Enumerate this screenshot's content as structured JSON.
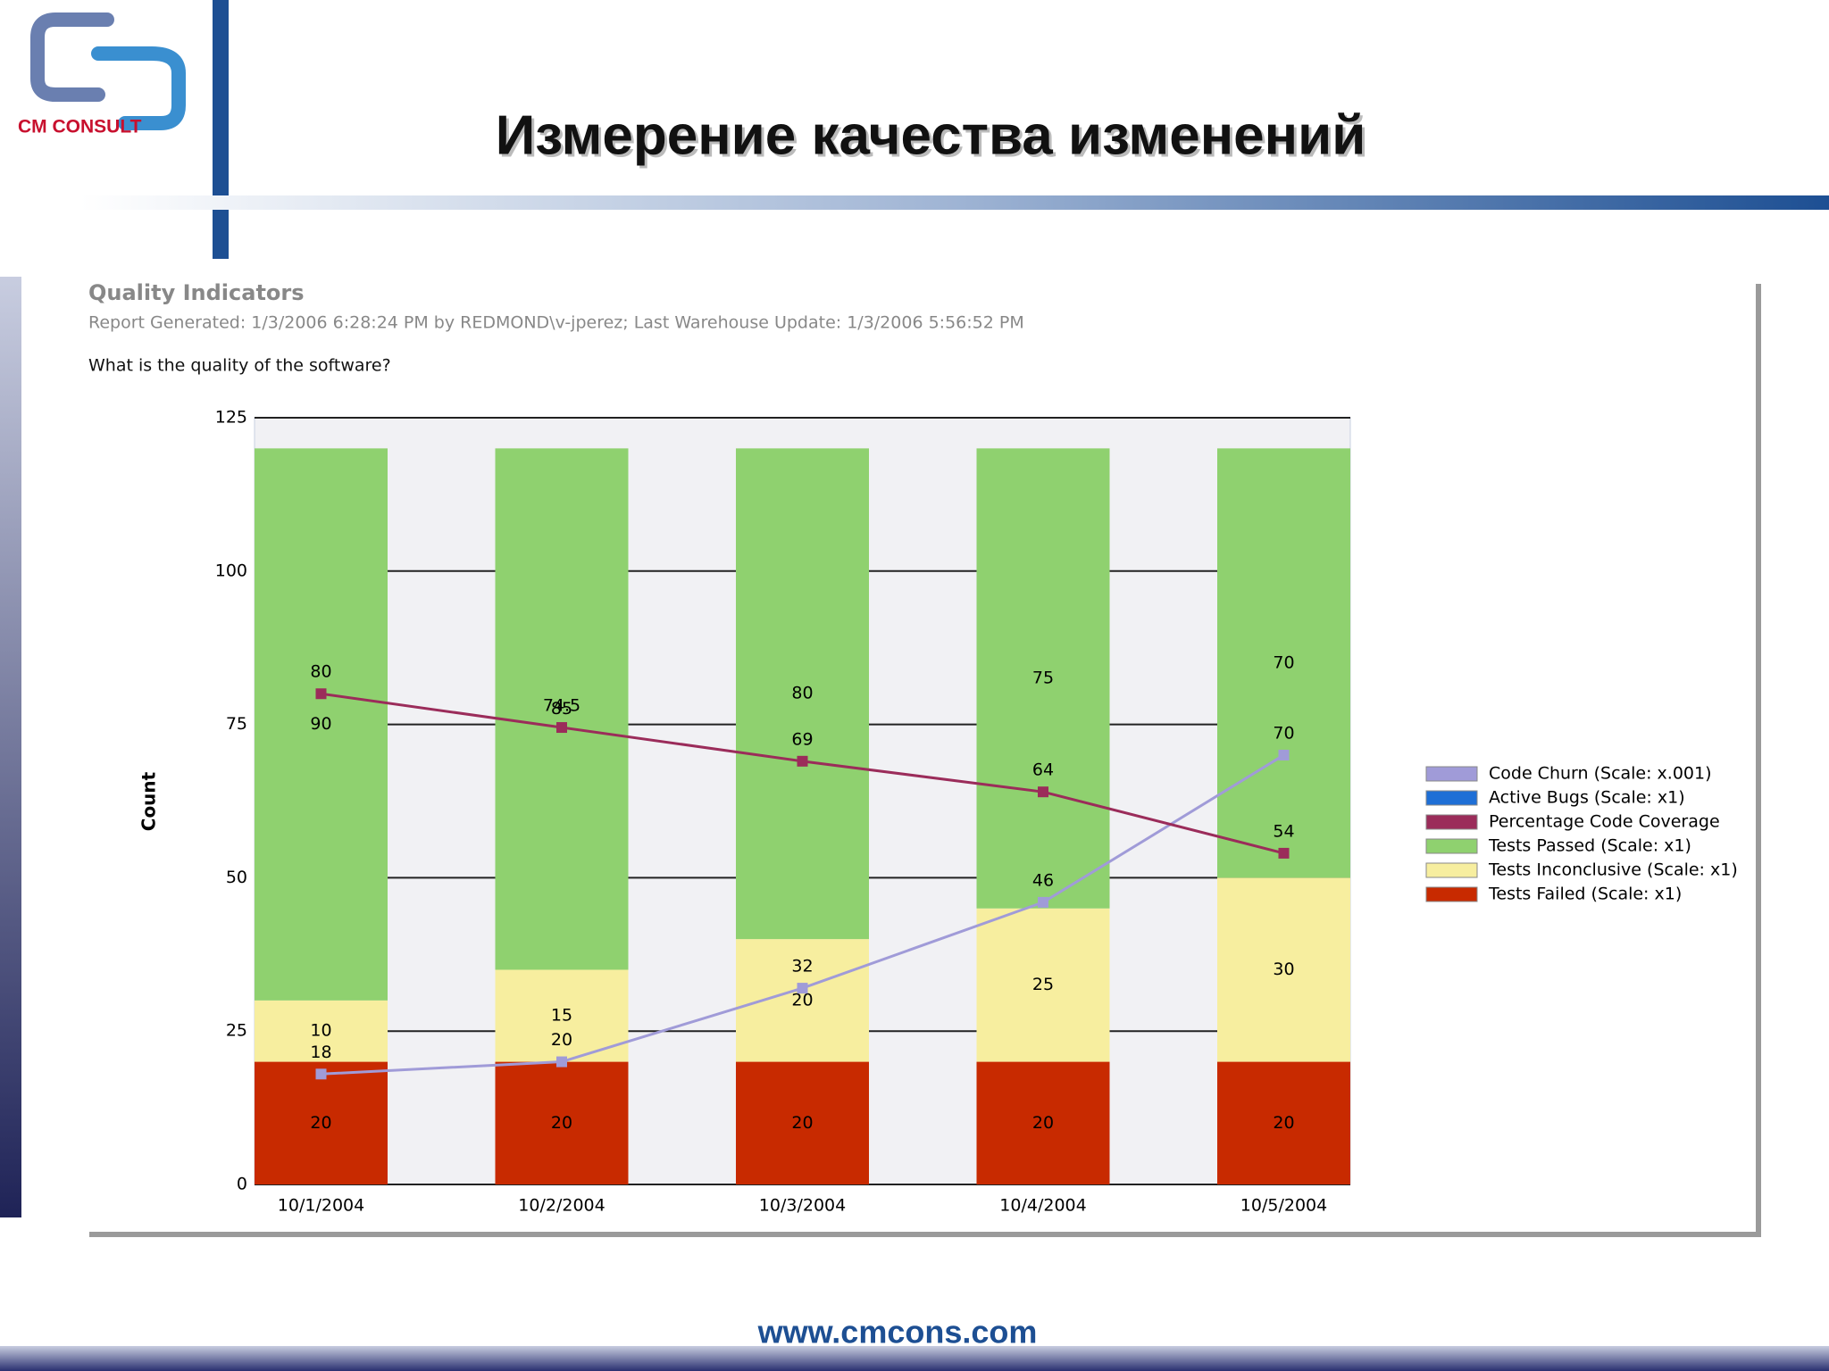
{
  "header": {
    "logo_text": "CM CONSULT",
    "title": "Измерение качества изменений"
  },
  "footer": {
    "url": "www.cmcons.com"
  },
  "chart_data": {
    "type": "bar",
    "stacked": true,
    "title": "Quality Indicators",
    "subtitle": "Report Generated: 1/3/2006 6:28:24 PM by REDMOND\\v-jperez; Last Warehouse Update: 1/3/2006 5:56:52 PM",
    "question": "What is the quality of the software?",
    "ylabel": "Count",
    "categories": [
      "10/1/2004",
      "10/2/2004",
      "10/3/2004",
      "10/4/2004",
      "10/5/2004"
    ],
    "series": [
      {
        "name": "Code Churn (Scale: x.001)",
        "type": "line",
        "color": "#a09bd8",
        "values": [
          18,
          20,
          32,
          46,
          70
        ]
      },
      {
        "name": "Active Bugs (Scale: x1)",
        "type": "line",
        "color": "#1e6fd6",
        "values": [
          null,
          null,
          null,
          null,
          null
        ]
      },
      {
        "name": "Percentage Code Coverage",
        "type": "line",
        "color": "#9b2c5a",
        "values": [
          80,
          74.5,
          69,
          64,
          54
        ]
      },
      {
        "name": "Tests Passed (Scale: x1)",
        "type": "bar",
        "color": "#8fd16f",
        "values": [
          90,
          85,
          80,
          75,
          70
        ]
      },
      {
        "name": "Tests Inconclusive (Scale: x1)",
        "type": "bar",
        "color": "#f7ee9f",
        "values": [
          10,
          15,
          20,
          25,
          30
        ]
      },
      {
        "name": "Tests Failed (Scale: x1)",
        "type": "bar",
        "color": "#c82a00",
        "values": [
          20,
          20,
          20,
          20,
          20
        ]
      }
    ],
    "ylim": [
      0,
      125
    ],
    "yticks": [
      0,
      25,
      50,
      75,
      100,
      125
    ],
    "grid": true,
    "legend": "right"
  }
}
